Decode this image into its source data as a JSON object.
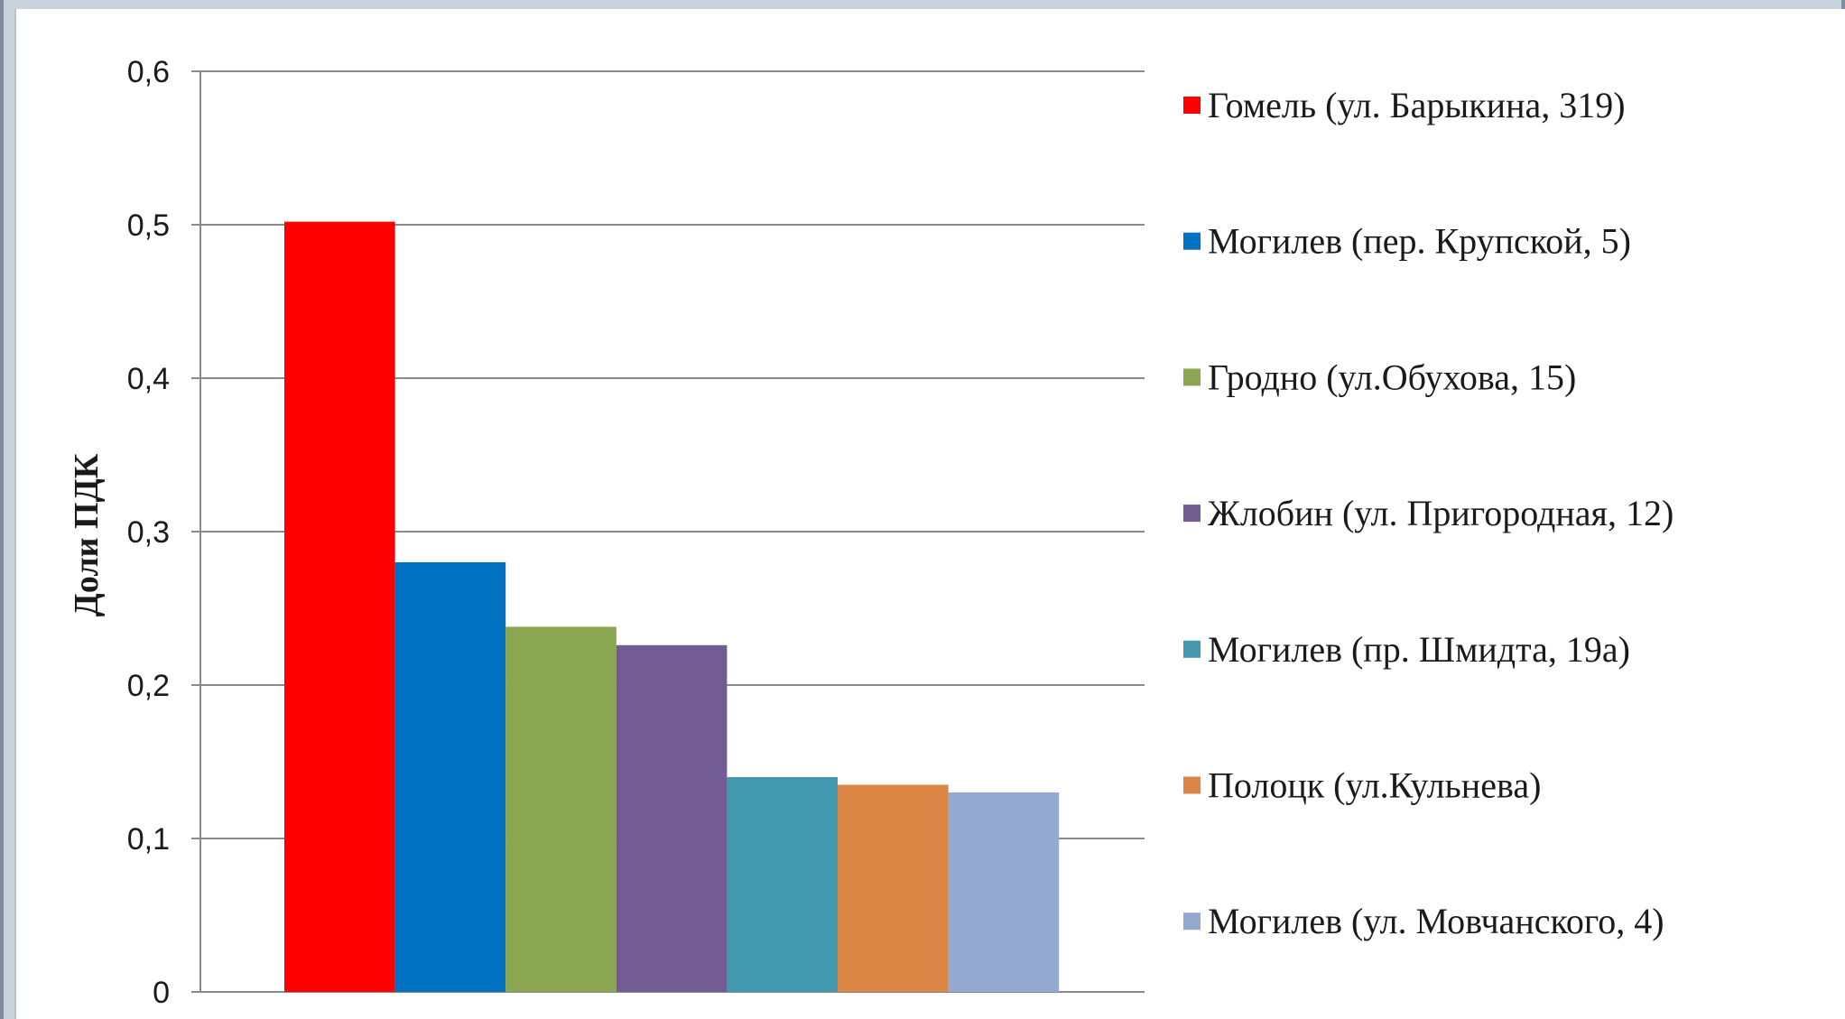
{
  "chart_data": {
    "type": "bar",
    "ylabel": "Доли ПДК",
    "ylim": [
      0,
      0.6
    ],
    "yticks": [
      "0",
      "0,1",
      "0,2",
      "0,3",
      "0,4",
      "0,5",
      "0,6"
    ],
    "grid": true,
    "legend_position": "right",
    "series": [
      {
        "name": "Гомель (ул. Барыкина, 319)",
        "value": 0.502,
        "color": "#ff0000"
      },
      {
        "name": "Могилев (пер. Крупской, 5)",
        "value": 0.28,
        "color": "#0070c0"
      },
      {
        "name": "Гродно (ул.Обухова, 15)",
        "value": 0.238,
        "color": "#8ba650"
      },
      {
        "name": "Жлобин (ул. Пригородная, 12)",
        "value": 0.226,
        "color": "#725c92"
      },
      {
        "name": "Могилев (пр. Шмидта, 19а)",
        "value": 0.14,
        "color": "#4298ae"
      },
      {
        "name": "Полоцк (ул.Кульнева)",
        "value": 0.135,
        "color": "#db8644"
      },
      {
        "name": "Могилев (ул. Мовчанского, 4)",
        "value": 0.13,
        "color": "#94a9d0"
      }
    ]
  }
}
